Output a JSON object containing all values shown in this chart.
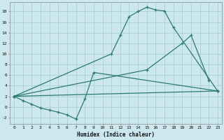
{
  "bg_color": "#cce8ee",
  "line_color": "#2d7a6b",
  "grid_color": "#aacfd8",
  "xlabel": "Humidex (Indice chaleur)",
  "xlim": [
    -0.5,
    23.5
  ],
  "ylim": [
    -3.2,
    19.8
  ],
  "xticks": [
    0,
    1,
    2,
    3,
    4,
    5,
    6,
    7,
    8,
    9,
    10,
    11,
    12,
    13,
    14,
    15,
    16,
    17,
    18,
    19,
    20,
    21,
    22,
    23
  ],
  "yticks": [
    -2,
    0,
    2,
    4,
    6,
    8,
    10,
    12,
    14,
    16,
    18
  ],
  "line1_x": [
    0,
    11,
    12,
    13,
    14,
    15,
    16,
    17,
    18,
    23
  ],
  "line1_y": [
    2,
    10,
    13.5,
    17,
    18,
    18.8,
    18.3,
    18.1,
    15,
    3
  ],
  "line2_x": [
    0,
    15,
    19,
    20,
    22
  ],
  "line2_y": [
    2,
    7,
    12,
    13.5,
    5
  ],
  "line3_x": [
    0,
    1,
    2,
    3,
    4,
    5,
    6,
    7,
    8,
    9,
    23
  ],
  "line3_y": [
    2,
    1.2,
    0.5,
    -0.2,
    -0.6,
    -1.0,
    -1.5,
    -2.3,
    1.5,
    6.5,
    3
  ],
  "line4_x": [
    0,
    23
  ],
  "line4_y": [
    2,
    3
  ]
}
